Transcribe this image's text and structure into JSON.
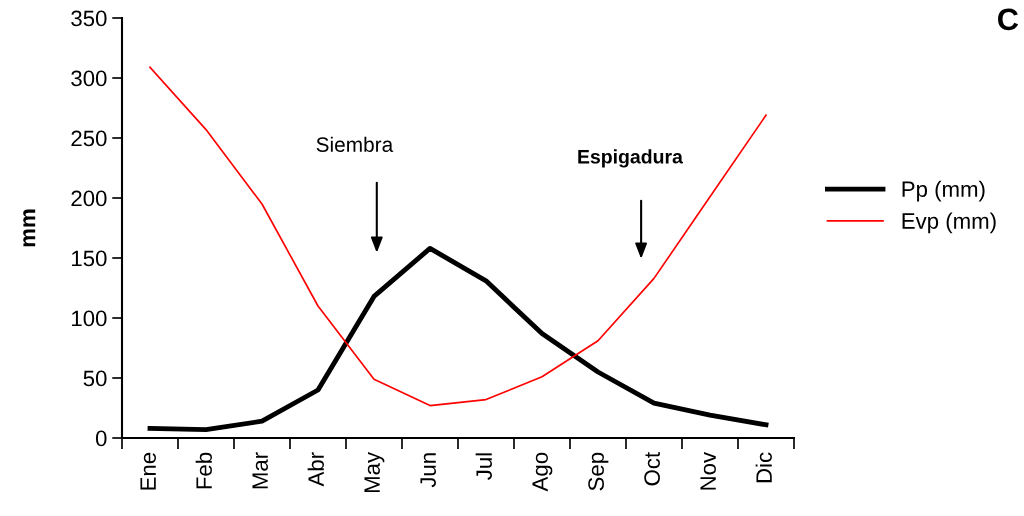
{
  "chart_data": {
    "type": "line",
    "ylabel": "mm",
    "categories": [
      "Ene",
      "Feb",
      "Mar",
      "Abr",
      "May",
      "Jun",
      "Jul",
      "Ago",
      "Sep",
      "Oct",
      "Nov",
      "Dic"
    ],
    "series": [
      {
        "name": "Pp (mm)",
        "color": "#000000",
        "values": [
          8,
          7,
          14,
          40,
          118,
          158,
          131,
          87,
          55,
          29,
          19,
          11
        ]
      },
      {
        "name": "Evp (mm)",
        "color": "#ff0000",
        "values": [
          309,
          257,
          195,
          110,
          49,
          27,
          32,
          51,
          81,
          133,
          201,
          269
        ]
      }
    ],
    "ylim": [
      0,
      350
    ],
    "yticks": [
      0,
      50,
      100,
      150,
      200,
      250,
      300,
      350
    ],
    "annotations": [
      "Siembra",
      "Espigadura",
      "C"
    ],
    "legend": "right",
    "grid": false,
    "marker": "none",
    "line_style": "solid"
  }
}
